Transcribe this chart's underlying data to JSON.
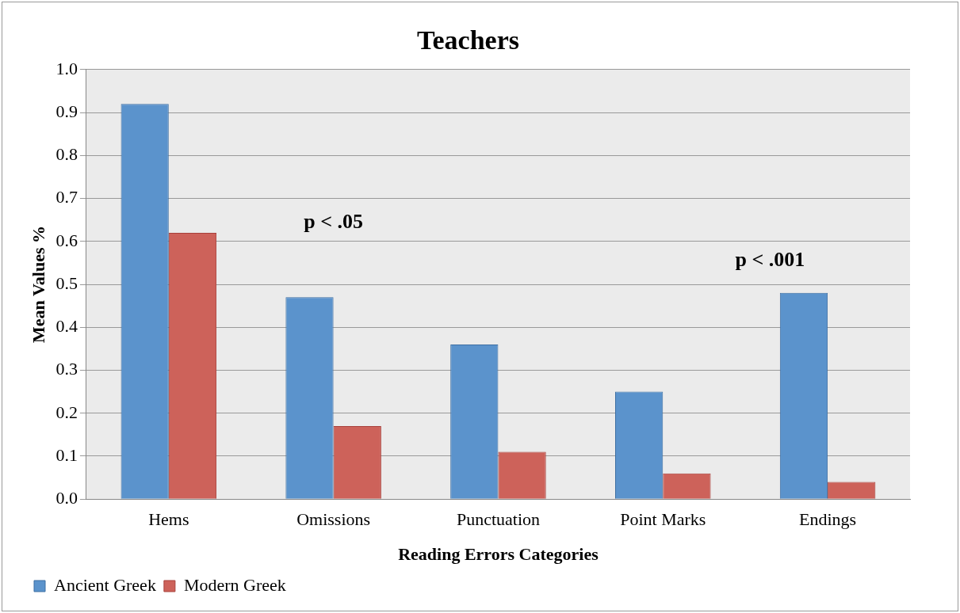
{
  "chart_data": {
    "type": "bar",
    "title": "Teachers",
    "xlabel": "Reading Errors Categories",
    "ylabel": "Mean Values %",
    "categories": [
      "Hems",
      "Omissions",
      "Punctuation",
      "Point Marks",
      "Endings"
    ],
    "series": [
      {
        "name": "Ancient Greek",
        "color": "#5b93cc",
        "values": [
          0.92,
          0.47,
          0.36,
          0.25,
          0.48
        ]
      },
      {
        "name": "Modern Greek",
        "color": "#cd625a",
        "values": [
          0.62,
          0.17,
          0.11,
          0.06,
          0.04
        ]
      }
    ],
    "ylim": [
      0,
      1
    ],
    "yticks": [
      {
        "value": 0,
        "label": "0.0"
      },
      {
        "value": 0.1,
        "label": "0.1"
      },
      {
        "value": 0.2,
        "label": "0.2"
      },
      {
        "value": 0.3,
        "label": "0.3"
      },
      {
        "value": 0.4,
        "label": "0.4"
      },
      {
        "value": 0.5,
        "label": "0.5"
      },
      {
        "value": 0.6,
        "label": "0.6"
      },
      {
        "value": 0.7,
        "label": "0.7"
      },
      {
        "value": 0.8,
        "label": "0.8"
      },
      {
        "value": 0.9,
        "label": "0.9"
      },
      {
        "value": 1,
        "label": "1.0"
      }
    ],
    "grid": "y",
    "legend": "bottom left",
    "annotations": [
      "p < .05",
      "p < .001"
    ]
  }
}
